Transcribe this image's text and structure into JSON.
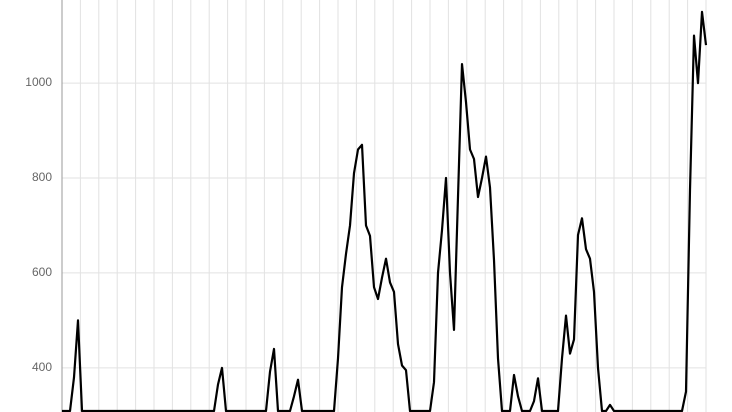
{
  "chart_data": {
    "type": "line",
    "title": "",
    "xlabel": "",
    "ylabel": "",
    "ylim": [
      307,
      1175
    ],
    "y_ticks": [
      400,
      600,
      800,
      1000
    ],
    "grid": true,
    "vertical_grid_count": 35,
    "line_color": "#000000",
    "grid_color": "#e2e2e2",
    "axis_color": "#999999",
    "series": [
      {
        "values": [
          250,
          250,
          250,
          380,
          500,
          300,
          250,
          250,
          250,
          250,
          250,
          250,
          250,
          250,
          250,
          250,
          250,
          250,
          250,
          250,
          250,
          250,
          250,
          250,
          250,
          250,
          250,
          250,
          250,
          250,
          250,
          250,
          250,
          250,
          250,
          250,
          250,
          250,
          250,
          365,
          400,
          300,
          250,
          250,
          250,
          250,
          250,
          250,
          250,
          250,
          250,
          250,
          392,
          440,
          300,
          250,
          250,
          250,
          340,
          375,
          300,
          250,
          250,
          250,
          250,
          250,
          250,
          250,
          250,
          420,
          570,
          640,
          700,
          810,
          860,
          870,
          700,
          678,
          570,
          545,
          590,
          630,
          580,
          560,
          450,
          405,
          395,
          300,
          250,
          250,
          250,
          250,
          280,
          370,
          600,
          690,
          800,
          600,
          480,
          760,
          1040,
          960,
          860,
          840,
          760,
          800,
          845,
          780,
          627,
          420,
          290,
          250,
          250,
          385,
          340,
          250,
          250,
          250,
          330,
          378,
          290,
          250,
          250,
          250,
          300,
          420,
          510,
          430,
          460,
          680,
          715,
          650,
          630,
          560,
          400,
          300,
          250,
          322,
          250,
          250,
          250,
          250,
          250,
          250,
          250,
          250,
          250,
          250,
          250,
          250,
          250,
          250,
          250,
          250,
          250,
          250,
          350,
          775,
          1100,
          1000,
          1150,
          1080
        ]
      }
    ]
  }
}
